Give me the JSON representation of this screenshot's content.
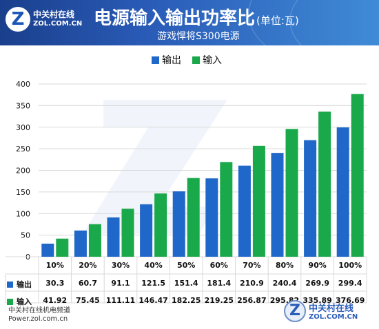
{
  "header": {
    "logo_line1": "中关村在线",
    "logo_line2": "ZOL.COM.CN",
    "title": "电源输入输出功率比",
    "title_unit": "(单位:瓦)",
    "subtitle": "游戏悍将S300电源"
  },
  "footer": {
    "line1": "中关村在线机电频道",
    "line2": "Power.zol.com.cn"
  },
  "watermark": {
    "line1": "中关村在线",
    "line2": "ZOL.COM.CN"
  },
  "colors": {
    "output": "#1f67c8",
    "input": "#19a84a",
    "grid": "#d9d9d9",
    "axis_text": "#111111"
  },
  "chart_data": {
    "type": "bar",
    "categories": [
      "10%",
      "20%",
      "30%",
      "40%",
      "50%",
      "60%",
      "70%",
      "80%",
      "90%",
      "100%"
    ],
    "series": [
      {
        "name": "输出",
        "values": [
          30.3,
          60.7,
          91.1,
          121.5,
          151.4,
          181.4,
          210.9,
          240.4,
          269.9,
          299.4
        ],
        "labels": [
          "30.3",
          "60.7",
          "91.1",
          "121.5",
          "151.4",
          "181.4",
          "210.9",
          "240.4",
          "269.9",
          "299.4"
        ]
      },
      {
        "name": "输入",
        "values": [
          41.92,
          75.45,
          111.11,
          146.47,
          182.25,
          219.25,
          256.87,
          295.82,
          335.89,
          376.69
        ],
        "labels": [
          "41.92",
          "75.45",
          "111.11",
          "146.47",
          "182.25",
          "219.25",
          "256.87",
          "295.82",
          "335.89",
          "376.69"
        ]
      }
    ],
    "ylim": [
      0,
      400
    ],
    "yticks": [
      "0",
      "50",
      "100",
      "150",
      "200",
      "250",
      "300",
      "350",
      "400"
    ],
    "legend_position": "top-center",
    "grid": true,
    "data_table": true
  }
}
